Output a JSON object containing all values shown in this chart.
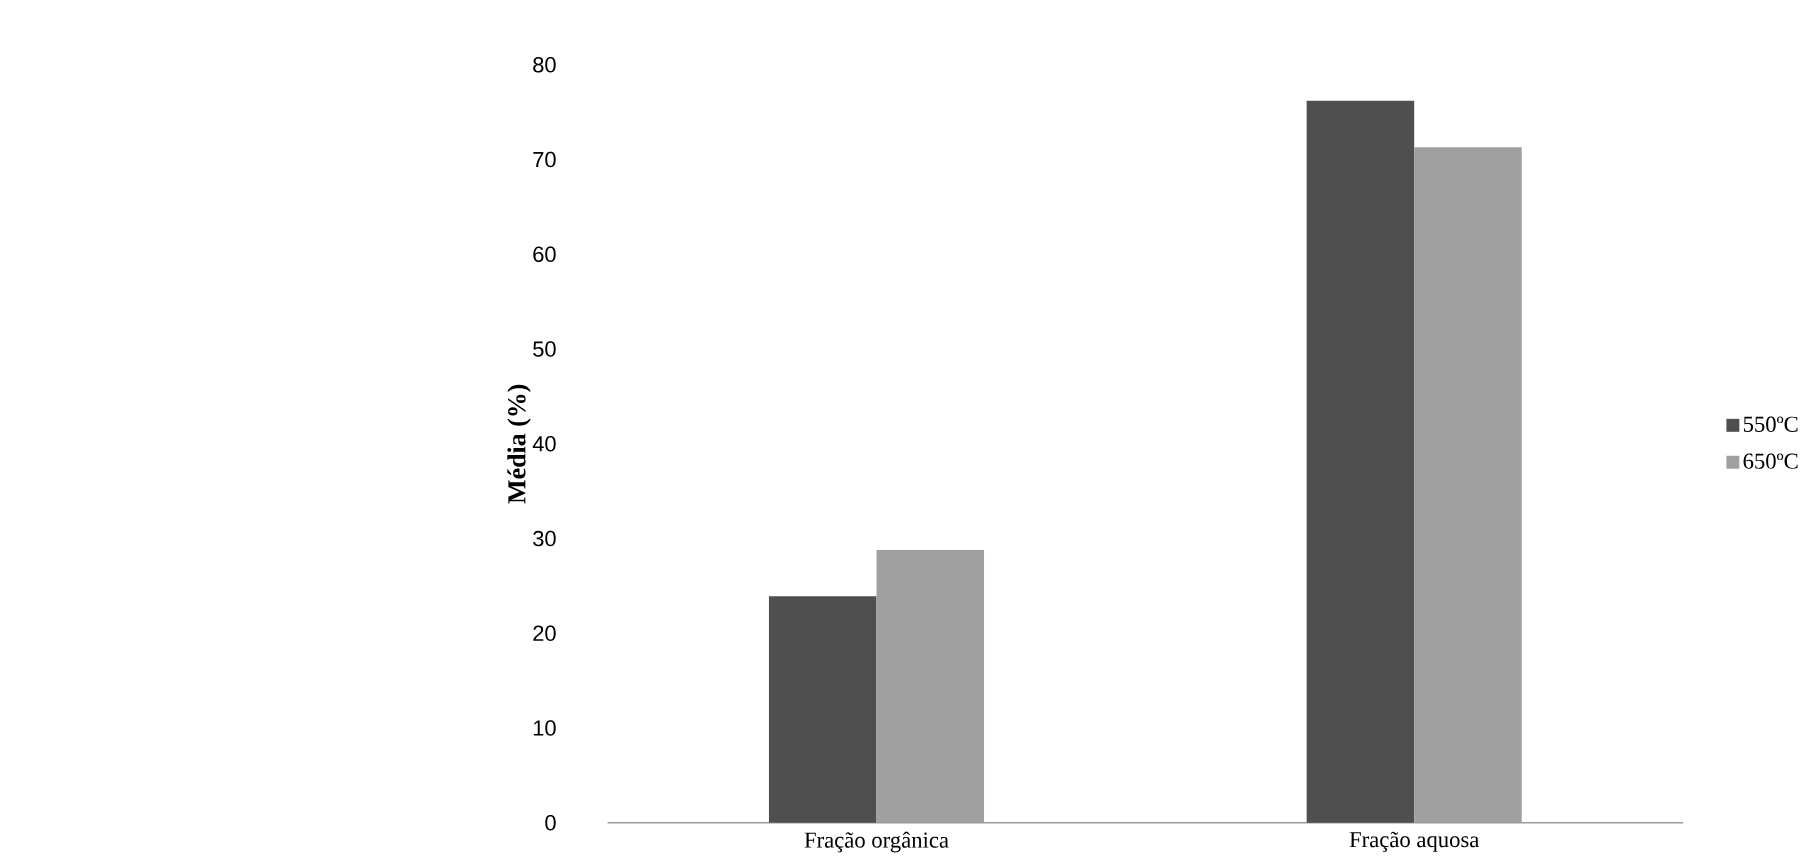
{
  "chart_data": {
    "type": "bar",
    "ylabel": "Média (%)",
    "categories": [
      "Fração orgânica",
      "Fração aquosa"
    ],
    "series": [
      {
        "name": "550ºC",
        "color": "#4f4f4f",
        "values": [
          23.9,
          76.2
        ]
      },
      {
        "name": "650ºC",
        "color": "#a0a0a0",
        "values": [
          28.8,
          71.3
        ]
      }
    ],
    "ylim": [
      0,
      80
    ],
    "yticks": [
      0,
      10,
      20,
      30,
      40,
      50,
      60,
      70,
      80
    ],
    "legend": "right",
    "grid": false
  }
}
